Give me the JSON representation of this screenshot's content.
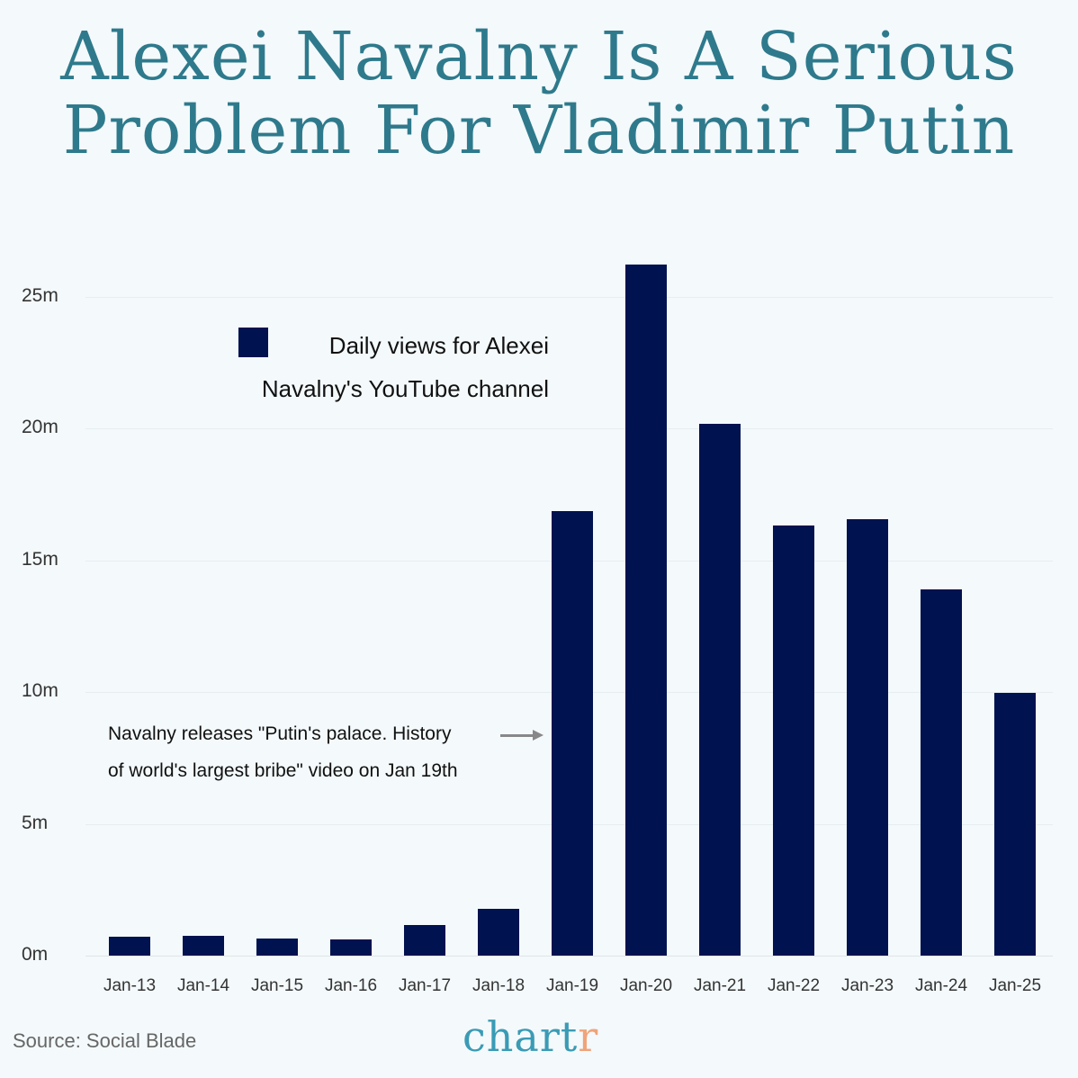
{
  "title": {
    "line1": "Alexei Navalny Is A Serious",
    "line2": "Problem For Vladimir Putin"
  },
  "legend": {
    "line1": "Daily views for Alexei",
    "line2": "Navalny's YouTube channel",
    "color": "#00124f"
  },
  "annotation": {
    "line1": "Navalny releases \"Putin's palace. History",
    "line2": "of world's largest bribe\" video on Jan 19th",
    "arrow_icon": "arrow-right-icon"
  },
  "y_axis": {
    "ticks": [
      "0m",
      "5m",
      "10m",
      "15m",
      "20m",
      "25m"
    ]
  },
  "footer": {
    "source": "Source: Social Blade",
    "brand_main": "chart",
    "brand_accent": "r",
    "brand_color": "#3a9bb5",
    "brand_accent_color": "#f0a37a"
  },
  "colors": {
    "title": "#2e7a8c",
    "bar": "#00124f",
    "background": "#f4f9fb"
  },
  "chart_data": {
    "type": "bar",
    "title": "Alexei Navalny Is A Serious Problem For Vladimir Putin",
    "xlabel": "",
    "ylabel": "",
    "ylim": [
      0,
      26.5
    ],
    "yticks": [
      0,
      5,
      10,
      15,
      20,
      25
    ],
    "ytick_labels": [
      "0m",
      "5m",
      "10m",
      "15m",
      "20m",
      "25m"
    ],
    "grid": true,
    "legend_position": "upper-left (inside)",
    "categories": [
      "Jan-13",
      "Jan-14",
      "Jan-15",
      "Jan-16",
      "Jan-17",
      "Jan-18",
      "Jan-19",
      "Jan-20",
      "Jan-21",
      "Jan-22",
      "Jan-23",
      "Jan-24",
      "Jan-25"
    ],
    "series": [
      {
        "name": "Daily views for Alexei Navalny's YouTube channel",
        "unit": "millions",
        "values": [
          0.72,
          0.75,
          0.65,
          0.63,
          1.16,
          1.78,
          16.87,
          26.23,
          20.18,
          16.33,
          16.56,
          13.9,
          9.97
        ]
      }
    ],
    "annotations": [
      {
        "text": "Navalny releases \"Putin's palace. History of world's largest bribe\" video on Jan 19th",
        "points_to": "Jan-19"
      }
    ],
    "source": "Social Blade"
  }
}
